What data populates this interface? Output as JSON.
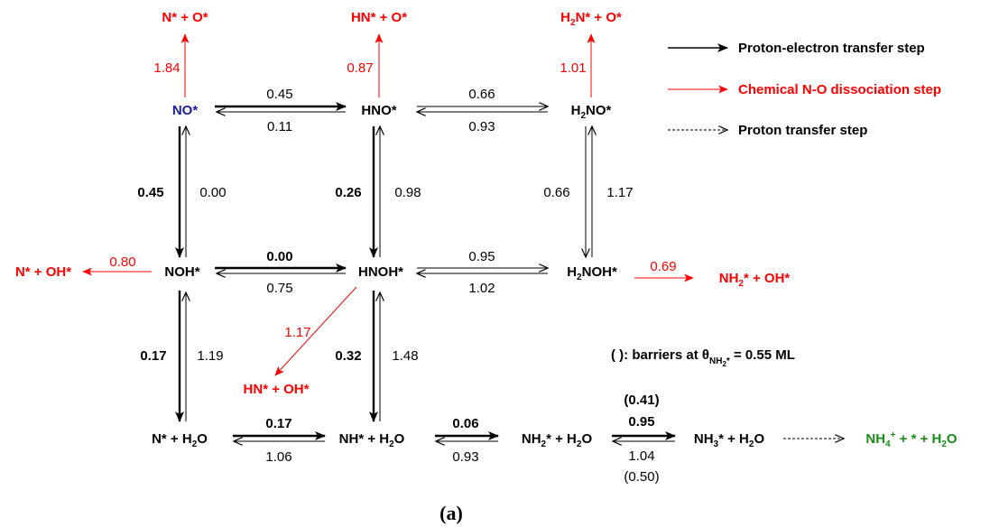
{
  "species": {
    "no": "NO*",
    "hno": "HNO*",
    "h2no": [
      "H",
      "2",
      "NO*"
    ],
    "noh": "NOH*",
    "hnoh": "HNOH*",
    "h2noh": [
      "H",
      "2",
      "NOH*"
    ],
    "n_h2o": [
      "N* + H",
      "2",
      "O"
    ],
    "nh_h2o": [
      "NH* + H",
      "2",
      "O"
    ],
    "nh2_h2o": [
      "NH",
      "2",
      "* + H",
      "2",
      "O"
    ],
    "nh3_h2o": [
      "NH",
      "3",
      "* + H",
      "2",
      "O"
    ],
    "nh4": [
      "NH",
      "4",
      "+",
      " + * + H",
      "2",
      "O"
    ],
    "n_o_top": "N* + O*",
    "hn_o_top": "HN* + O*",
    "h2n_o_top": [
      "H",
      "2",
      "N* + O*"
    ],
    "n_oh_left": "N* + OH*",
    "hn_oh": "HN* + OH*",
    "nh2_oh": [
      "NH",
      "2",
      "* + OH*"
    ]
  },
  "barriers": {
    "no_to_hno_fwd": "0.45",
    "no_to_hno_rev": "0.11",
    "hno_to_h2no_fwd": "0.66",
    "hno_to_h2no_rev": "0.93",
    "no_diss": "1.84",
    "hno_diss": "0.87",
    "h2no_diss": "1.01",
    "no_to_noh_fwd": "0.45",
    "no_to_noh_rev": "0.00",
    "hno_to_hnoh_fwd": "0.26",
    "hno_to_hnoh_rev": "0.98",
    "h2no_to_h2noh_fwd": "0.66",
    "h2no_to_h2noh_rev": "1.17",
    "noh_diss": "0.80",
    "noh_to_hnoh_fwd": "0.00",
    "noh_to_hnoh_rev": "0.75",
    "hnoh_to_h2noh_fwd": "0.95",
    "hnoh_to_h2noh_rev": "1.02",
    "h2noh_diss": "0.69",
    "hnoh_diss": "1.17",
    "noh_to_n_fwd": "0.17",
    "noh_to_n_rev": "1.19",
    "hnoh_to_nh_fwd": "0.32",
    "hnoh_to_nh_rev": "1.48",
    "n_to_nh_fwd": "0.17",
    "n_to_nh_rev": "1.06",
    "nh_to_nh2_fwd": "0.06",
    "nh_to_nh2_rev": "0.93",
    "nh2_to_nh3_fwd": "0.95",
    "nh2_to_nh3_fwd_cov": "(0.41)",
    "nh2_to_nh3_rev": "1.04",
    "nh2_to_nh3_rev_cov": "(0.50)"
  },
  "legend": {
    "proton_electron": "Proton-electron transfer step",
    "chemical": "Chemical N-O dissociation step",
    "proton": "Proton transfer step"
  },
  "note": {
    "prefix": "( ): barriers at θ",
    "sub": "NH",
    "sub2": "2",
    "sub_star": "*",
    "suffix": " = 0.55 ML"
  },
  "caption": "(a)",
  "colors": {
    "black": "#000000",
    "red": "#ff0000",
    "blue": "#1a1aa0",
    "green": "#1a8c1a"
  }
}
